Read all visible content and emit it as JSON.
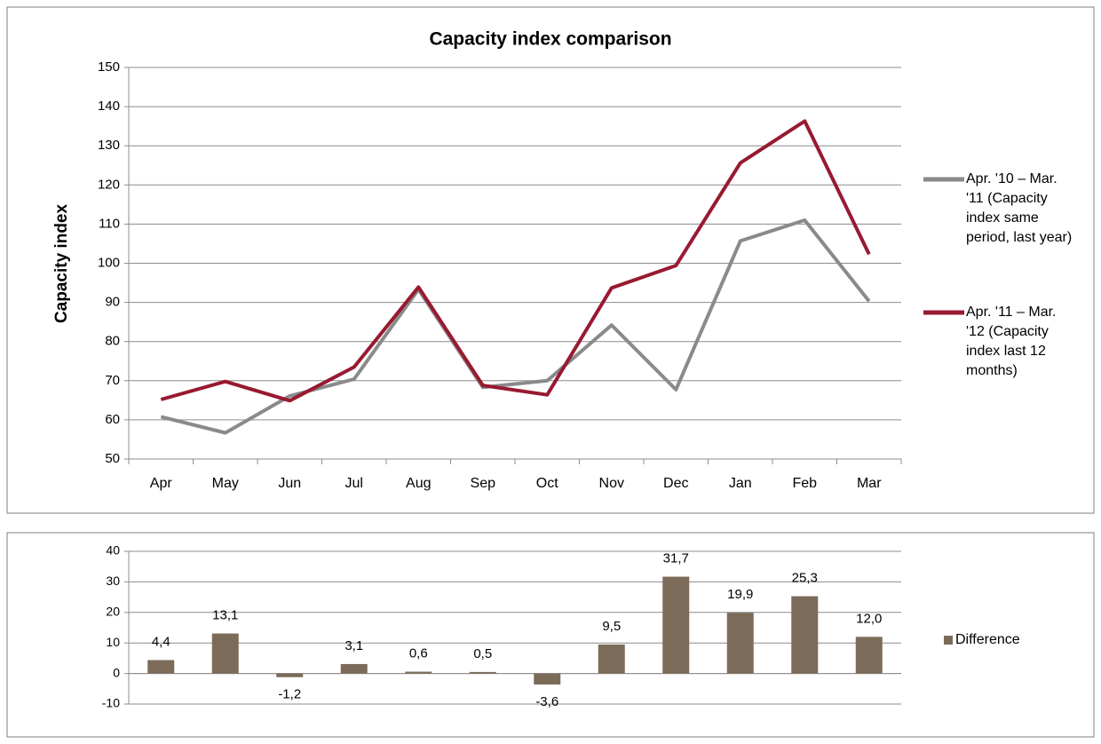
{
  "chart_data": [
    {
      "type": "line",
      "title": "Capacity index comparison",
      "y_label": "Capacity index",
      "categories": [
        "Apr",
        "May",
        "Jun",
        "Jul",
        "Aug",
        "Sep",
        "Oct",
        "Nov",
        "Dec",
        "Jan",
        "Feb",
        "Mar"
      ],
      "series": [
        {
          "name": "Apr. '10 – Mar. '11 (Capacity index same period, last year)",
          "color": "#8a8a8a",
          "values": [
            60.8,
            56.7,
            66.1,
            70.4,
            93.3,
            68.3,
            70.0,
            84.2,
            67.7,
            105.7,
            111.0,
            90.3
          ]
        },
        {
          "name": "Apr. '11 – Mar. '12 (Capacity index last 12 months)",
          "color": "#981a30",
          "values": [
            65.2,
            69.8,
            64.9,
            73.5,
            93.9,
            68.8,
            66.4,
            93.7,
            99.4,
            125.6,
            136.3,
            102.3
          ]
        }
      ],
      "ylim": [
        50,
        150
      ],
      "yticks": [
        50,
        60,
        70,
        80,
        90,
        100,
        110,
        120,
        130,
        140,
        150
      ],
      "grid": true,
      "legend": "right"
    },
    {
      "type": "bar",
      "series": [
        {
          "name": "Difference",
          "color": "#7d6b5a",
          "values": [
            4.4,
            13.1,
            -1.2,
            3.1,
            0.6,
            0.5,
            -3.6,
            9.5,
            31.7,
            19.9,
            25.3,
            12.0
          ],
          "value_labels": [
            "4,4",
            "13,1",
            "-1,2",
            "3,1",
            "0,6",
            "0,5",
            "-3,6",
            "9,5",
            "31,7",
            "19,9",
            "25,3",
            "12,0"
          ]
        }
      ],
      "ylim": [
        -10,
        40
      ],
      "yticks": [
        -10,
        0,
        10,
        20,
        30,
        40
      ],
      "grid": true,
      "legend": "right"
    }
  ]
}
